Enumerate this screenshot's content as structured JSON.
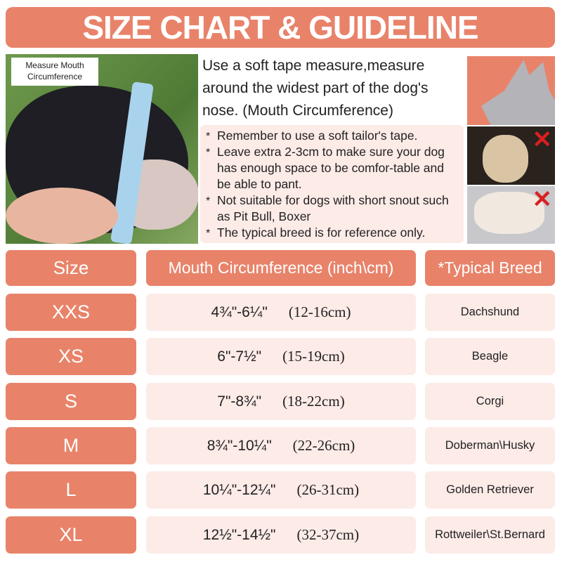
{
  "title": "SIZE CHART & GUIDELINE",
  "photo_label": {
    "line1": "Measure  Mouth",
    "line2": "Circumference"
  },
  "intro": "Use a soft tape measure,measure around the widest part of the dog's nose. (Mouth Circumference)",
  "bullets": [
    "Remember to use a soft tailor's tape.",
    "Leave extra 2-3cm to make sure your dog has enough space to be comfor-table and be able to pant.",
    "Not suitable for dogs with short snout such as Pit Bull, Boxer",
    "The typical breed is for reference only."
  ],
  "icons": {
    "wrong": "red-x-icon"
  },
  "colors": {
    "accent": "#e8836a",
    "cell": "#fcebe7"
  },
  "table": {
    "headers": {
      "size": "Size",
      "mouth": "Mouth Circumference  (inch\\cm)",
      "breed": "*Typical Breed"
    },
    "rows": [
      {
        "size": "XXS",
        "inch": "4¾\"-6¼\"",
        "cm": "(12-16cm)",
        "breed": "Dachshund"
      },
      {
        "size": "XS",
        "inch": "6\"-7½\"",
        "cm": "(15-19cm)",
        "breed": "Beagle"
      },
      {
        "size": "S",
        "inch": "7\"-8¾\"",
        "cm": "(18-22cm)",
        "breed": "Corgi"
      },
      {
        "size": "M",
        "inch": "8¾\"-10¼\"",
        "cm": "(22-26cm)",
        "breed": "Doberman\\Husky"
      },
      {
        "size": "L",
        "inch": "10¼\"-12¼\"",
        "cm": "(26-31cm)",
        "breed": "Golden Retriever"
      },
      {
        "size": "XL",
        "inch": "12½\"-14½\"",
        "cm": "(32-37cm)",
        "breed": "Rottweiler\\St.Bernard"
      }
    ]
  }
}
